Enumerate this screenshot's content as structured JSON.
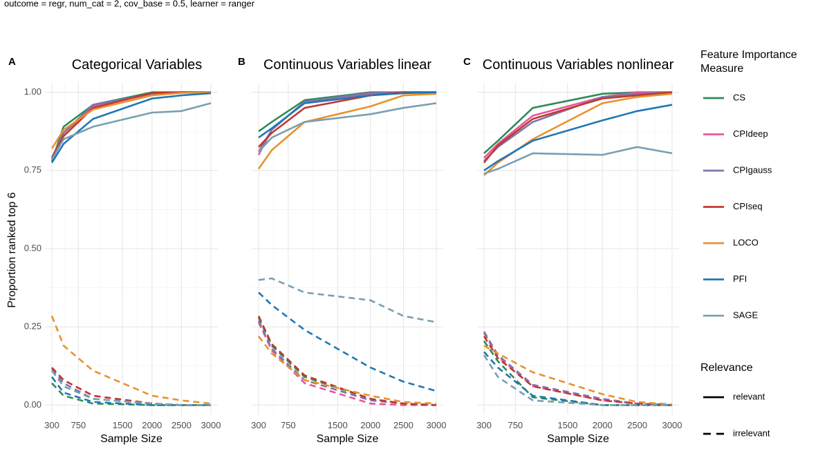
{
  "caption": "outcome = regr, num_cat = 2, cov_base = 0.5, learner = ranger",
  "y_axis_title": "Proportion ranked top 6",
  "x_axis_title": "Sample Size",
  "legend": {
    "measure_title_line1": "Feature Importance",
    "measure_title_line2": "Measure",
    "relevance_title": "Relevance",
    "measures": [
      {
        "name": "CS",
        "color": "#2e8b57"
      },
      {
        "name": "CPIdeep",
        "color": "#e7559b"
      },
      {
        "name": "CPIgauss",
        "color": "#8073ac"
      },
      {
        "name": "CPIseq",
        "color": "#c0392b"
      },
      {
        "name": "LOCO",
        "color": "#e8912d"
      },
      {
        "name": "PFI",
        "color": "#1f78b4"
      },
      {
        "name": "SAGE",
        "color": "#7a9eb1"
      }
    ],
    "relevance": [
      {
        "name": "relevant",
        "dash": "solid"
      },
      {
        "name": "irrelevant",
        "dash": "dashed"
      }
    ]
  },
  "chart_data": [
    {
      "type": "line",
      "tag": "A",
      "title": "Categorical Variables",
      "xlabel": "Sample Size",
      "ylabel": "Proportion ranked top 6",
      "x": [
        300,
        500,
        1000,
        2000,
        2500,
        3000
      ],
      "xticks": [
        300,
        750,
        1500,
        2000,
        2500,
        3000
      ],
      "yticks": [
        0.0,
        0.25,
        0.5,
        0.75,
        1.0
      ],
      "ytick_labels": [
        "0.00",
        "0.25",
        "0.50",
        "0.75",
        "1.00"
      ],
      "ylim": [
        -0.03,
        1.03
      ],
      "series": [
        {
          "measure": "CS",
          "relevance": "relevant",
          "values": [
            0.78,
            0.89,
            0.96,
            1.0,
            1.0,
            1.0
          ]
        },
        {
          "measure": "CPIdeep",
          "relevance": "relevant",
          "values": [
            0.79,
            0.87,
            0.955,
            0.995,
            1.0,
            1.0
          ]
        },
        {
          "measure": "CPIgauss",
          "relevance": "relevant",
          "values": [
            0.79,
            0.87,
            0.96,
            0.995,
            1.0,
            1.0
          ]
        },
        {
          "measure": "CPIseq",
          "relevance": "relevant",
          "values": [
            0.79,
            0.86,
            0.95,
            0.998,
            1.0,
            1.0
          ]
        },
        {
          "measure": "LOCO",
          "relevance": "relevant",
          "values": [
            0.82,
            0.88,
            0.945,
            0.99,
            0.998,
            1.0
          ]
        },
        {
          "measure": "PFI",
          "relevance": "relevant",
          "values": [
            0.775,
            0.835,
            0.915,
            0.98,
            0.99,
            0.997
          ]
        },
        {
          "measure": "SAGE",
          "relevance": "relevant",
          "values": [
            0.785,
            0.85,
            0.89,
            0.935,
            0.94,
            0.965
          ]
        },
        {
          "measure": "CS",
          "relevance": "irrelevant",
          "values": [
            0.07,
            0.03,
            0.005,
            0.0,
            0.0,
            0.0
          ]
        },
        {
          "measure": "CPIdeep",
          "relevance": "irrelevant",
          "values": [
            0.12,
            0.08,
            0.03,
            0.005,
            0.0,
            0.0
          ]
        },
        {
          "measure": "CPIgauss",
          "relevance": "irrelevant",
          "values": [
            0.115,
            0.07,
            0.02,
            0.005,
            0.0,
            0.0
          ]
        },
        {
          "measure": "CPIseq",
          "relevance": "irrelevant",
          "values": [
            0.12,
            0.08,
            0.03,
            0.005,
            0.0,
            0.0
          ]
        },
        {
          "measure": "LOCO",
          "relevance": "irrelevant",
          "values": [
            0.285,
            0.19,
            0.11,
            0.03,
            0.015,
            0.005
          ]
        },
        {
          "measure": "PFI",
          "relevance": "irrelevant",
          "values": [
            0.09,
            0.04,
            0.01,
            0.0,
            0.0,
            0.0
          ]
        },
        {
          "measure": "SAGE",
          "relevance": "irrelevant",
          "values": [
            0.11,
            0.06,
            0.02,
            0.005,
            0.0,
            0.0
          ]
        }
      ]
    },
    {
      "type": "line",
      "tag": "B",
      "title": "Continuous Variables linear",
      "xlabel": "Sample Size",
      "ylabel": "",
      "x": [
        300,
        500,
        1000,
        2000,
        2500,
        3000
      ],
      "xticks": [
        300,
        750,
        1500,
        2000,
        2500,
        3000
      ],
      "ylim": [
        -0.03,
        1.03
      ],
      "series": [
        {
          "measure": "CS",
          "relevance": "relevant",
          "values": [
            0.875,
            0.905,
            0.975,
            1.0,
            1.0,
            1.0
          ]
        },
        {
          "measure": "CPIdeep",
          "relevance": "relevant",
          "values": [
            0.8,
            0.88,
            0.97,
            0.995,
            1.0,
            1.0
          ]
        },
        {
          "measure": "CPIgauss",
          "relevance": "relevant",
          "values": [
            0.81,
            0.88,
            0.97,
            0.998,
            1.0,
            1.0
          ]
        },
        {
          "measure": "CPIseq",
          "relevance": "relevant",
          "values": [
            0.825,
            0.87,
            0.95,
            0.99,
            1.0,
            1.0
          ]
        },
        {
          "measure": "LOCO",
          "relevance": "relevant",
          "values": [
            0.755,
            0.815,
            0.905,
            0.955,
            0.99,
            0.995
          ]
        },
        {
          "measure": "PFI",
          "relevance": "relevant",
          "values": [
            0.855,
            0.885,
            0.965,
            0.99,
            0.997,
            1.0
          ]
        },
        {
          "measure": "SAGE",
          "relevance": "relevant",
          "values": [
            0.81,
            0.855,
            0.905,
            0.93,
            0.95,
            0.965
          ]
        },
        {
          "measure": "CS",
          "relevance": "irrelevant",
          "values": [
            0.28,
            0.19,
            0.09,
            0.02,
            0.005,
            0.0
          ]
        },
        {
          "measure": "CPIdeep",
          "relevance": "irrelevant",
          "values": [
            0.265,
            0.175,
            0.07,
            0.005,
            0.0,
            0.0
          ]
        },
        {
          "measure": "CPIgauss",
          "relevance": "irrelevant",
          "values": [
            0.27,
            0.18,
            0.08,
            0.015,
            0.005,
            0.0
          ]
        },
        {
          "measure": "CPIseq",
          "relevance": "irrelevant",
          "values": [
            0.285,
            0.195,
            0.095,
            0.02,
            0.005,
            0.0
          ]
        },
        {
          "measure": "LOCO",
          "relevance": "irrelevant",
          "values": [
            0.22,
            0.165,
            0.08,
            0.03,
            0.01,
            0.005
          ]
        },
        {
          "measure": "PFI",
          "relevance": "irrelevant",
          "values": [
            0.36,
            0.32,
            0.24,
            0.12,
            0.075,
            0.045
          ]
        },
        {
          "measure": "SAGE",
          "relevance": "irrelevant",
          "values": [
            0.4,
            0.405,
            0.36,
            0.335,
            0.285,
            0.265
          ]
        }
      ]
    },
    {
      "type": "line",
      "tag": "C",
      "title": "Continuous Variables nonlinear",
      "xlabel": "Sample Size",
      "ylabel": "",
      "x": [
        300,
        500,
        1000,
        2000,
        2500,
        3000
      ],
      "xticks": [
        300,
        750,
        1500,
        2000,
        2500,
        3000
      ],
      "ylim": [
        -0.03,
        1.03
      ],
      "series": [
        {
          "measure": "CS",
          "relevance": "relevant",
          "values": [
            0.805,
            0.845,
            0.95,
            0.995,
            1.0,
            1.0
          ]
        },
        {
          "measure": "CPIdeep",
          "relevance": "relevant",
          "values": [
            0.79,
            0.835,
            0.925,
            0.985,
            1.0,
            1.0
          ]
        },
        {
          "measure": "CPIgauss",
          "relevance": "relevant",
          "values": [
            0.78,
            0.825,
            0.905,
            0.985,
            0.995,
            1.0
          ]
        },
        {
          "measure": "CPIseq",
          "relevance": "relevant",
          "values": [
            0.775,
            0.83,
            0.915,
            0.98,
            0.99,
            1.0
          ]
        },
        {
          "measure": "LOCO",
          "relevance": "relevant",
          "values": [
            0.735,
            0.775,
            0.85,
            0.965,
            0.985,
            0.995
          ]
        },
        {
          "measure": "PFI",
          "relevance": "relevant",
          "values": [
            0.75,
            0.78,
            0.845,
            0.91,
            0.94,
            0.96
          ]
        },
        {
          "measure": "SAGE",
          "relevance": "relevant",
          "values": [
            0.74,
            0.755,
            0.805,
            0.8,
            0.825,
            0.805
          ]
        },
        {
          "measure": "CS",
          "relevance": "irrelevant",
          "values": [
            0.205,
            0.14,
            0.025,
            0.0,
            0.0,
            0.0
          ]
        },
        {
          "measure": "CPIdeep",
          "relevance": "irrelevant",
          "values": [
            0.23,
            0.155,
            0.06,
            0.015,
            0.005,
            0.0
          ]
        },
        {
          "measure": "CPIgauss",
          "relevance": "irrelevant",
          "values": [
            0.235,
            0.16,
            0.065,
            0.02,
            0.005,
            0.0
          ]
        },
        {
          "measure": "CPIseq",
          "relevance": "irrelevant",
          "values": [
            0.22,
            0.15,
            0.06,
            0.015,
            0.005,
            0.0
          ]
        },
        {
          "measure": "LOCO",
          "relevance": "irrelevant",
          "values": [
            0.19,
            0.165,
            0.105,
            0.035,
            0.01,
            0.002
          ]
        },
        {
          "measure": "PFI",
          "relevance": "irrelevant",
          "values": [
            0.17,
            0.12,
            0.03,
            0.0,
            0.0,
            0.0
          ]
        },
        {
          "measure": "SAGE",
          "relevance": "irrelevant",
          "values": [
            0.16,
            0.09,
            0.015,
            0.0,
            0.0,
            0.0
          ]
        }
      ]
    }
  ]
}
